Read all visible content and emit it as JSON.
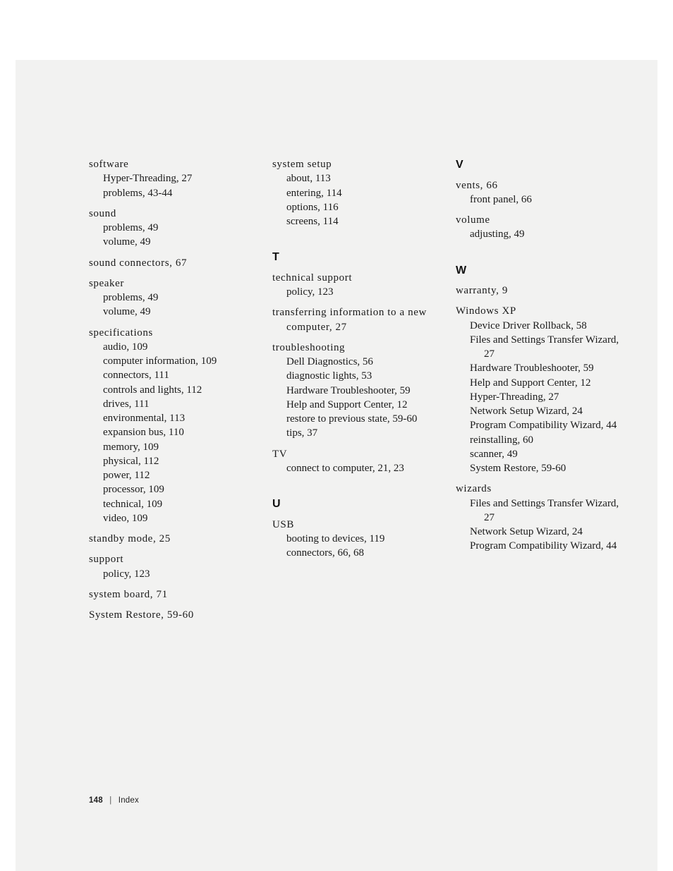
{
  "page": {
    "number": "148",
    "separator": "|",
    "section": "Index",
    "background_color": "#f2f2f1",
    "text_color": "#1b1b1b",
    "body_font": "Georgia, 'Times New Roman', serif",
    "heading_font": "Arial, Helvetica, sans-serif",
    "body_fontsize_pt": 11,
    "heading_fontsize_pt": 12
  },
  "columns": [
    {
      "groups": [
        {
          "letter": null,
          "entries": [
            {
              "main": "software",
              "subs": [
                "Hyper-Threading, 27",
                "problems, 43-44"
              ]
            },
            {
              "main": "sound",
              "subs": [
                "problems, 49",
                "volume, 49"
              ]
            },
            {
              "main": "sound connectors, 67",
              "subs": []
            },
            {
              "main": "speaker",
              "subs": [
                "problems, 49",
                "volume, 49"
              ]
            },
            {
              "main": "specifications",
              "subs": [
                "audio, 109",
                "computer information, 109",
                "connectors, 111",
                "controls and lights, 112",
                "drives, 111",
                "environmental, 113",
                "expansion bus, 110",
                "memory, 109",
                "physical, 112",
                "power, 112",
                "processor, 109",
                "technical, 109",
                "video, 109"
              ]
            },
            {
              "main": "standby mode, 25",
              "subs": []
            },
            {
              "main": "support",
              "subs": [
                "policy, 123"
              ]
            },
            {
              "main": "system board, 71",
              "subs": []
            },
            {
              "main": "System Restore, 59-60",
              "subs": []
            }
          ]
        }
      ]
    },
    {
      "groups": [
        {
          "letter": null,
          "entries": [
            {
              "main": "system setup",
              "subs": [
                "about, 113",
                "entering, 114",
                "options, 116",
                "screens, 114"
              ]
            }
          ]
        },
        {
          "letter": "T",
          "entries": [
            {
              "main": "technical support",
              "subs": [
                "policy, 123"
              ]
            },
            {
              "main": "transferring information to a new computer, 27",
              "wrap": true,
              "subs": []
            },
            {
              "main": "troubleshooting",
              "subs": [
                "Dell Diagnostics, 56",
                "diagnostic lights, 53",
                "Hardware Troubleshooter, 59",
                "Help and Support Center, 12",
                "restore to previous state, 59-60",
                "tips, 37"
              ]
            },
            {
              "main": "TV",
              "subs": [
                "connect to computer, 21, 23"
              ]
            }
          ]
        },
        {
          "letter": "U",
          "entries": [
            {
              "main": "USB",
              "subs": [
                "booting to devices, 119",
                "connectors, 66, 68"
              ]
            }
          ]
        }
      ]
    },
    {
      "groups": [
        {
          "letter": "V",
          "entries": [
            {
              "main": "vents, 66",
              "subs": [
                "front panel, 66"
              ]
            },
            {
              "main": "volume",
              "subs": [
                "adjusting, 49"
              ]
            }
          ]
        },
        {
          "letter": "W",
          "entries": [
            {
              "main": "warranty, 9",
              "subs": []
            },
            {
              "main": "Windows XP",
              "subs": [
                "Device Driver Rollback, 58",
                {
                  "text": "Files and Settings Transfer Wizard, 27",
                  "wrap": true
                },
                "Hardware Troubleshooter, 59",
                "Help and Support Center, 12",
                "Hyper-Threading, 27",
                "Network Setup Wizard, 24",
                {
                  "text": "Program Compatibility Wizard, 44",
                  "wrap": true
                },
                "reinstalling, 60",
                "scanner, 49",
                "System Restore, 59-60"
              ]
            },
            {
              "main": "wizards",
              "subs": [
                {
                  "text": "Files and Settings Transfer Wizard, 27",
                  "wrap": true
                },
                "Network Setup Wizard, 24",
                {
                  "text": "Program Compatibility Wizard, 44",
                  "wrap": true
                }
              ]
            }
          ]
        }
      ]
    }
  ]
}
